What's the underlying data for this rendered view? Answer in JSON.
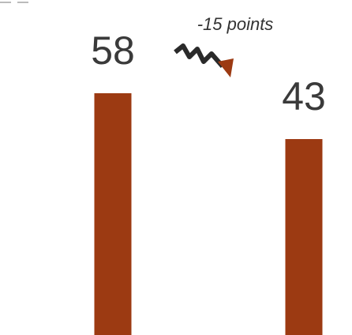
{
  "chart_data": {
    "type": "bar",
    "categories": [
      null,
      null
    ],
    "values": [
      58,
      43
    ],
    "color": "#9c3a12",
    "annotation": "-15 points"
  }
}
